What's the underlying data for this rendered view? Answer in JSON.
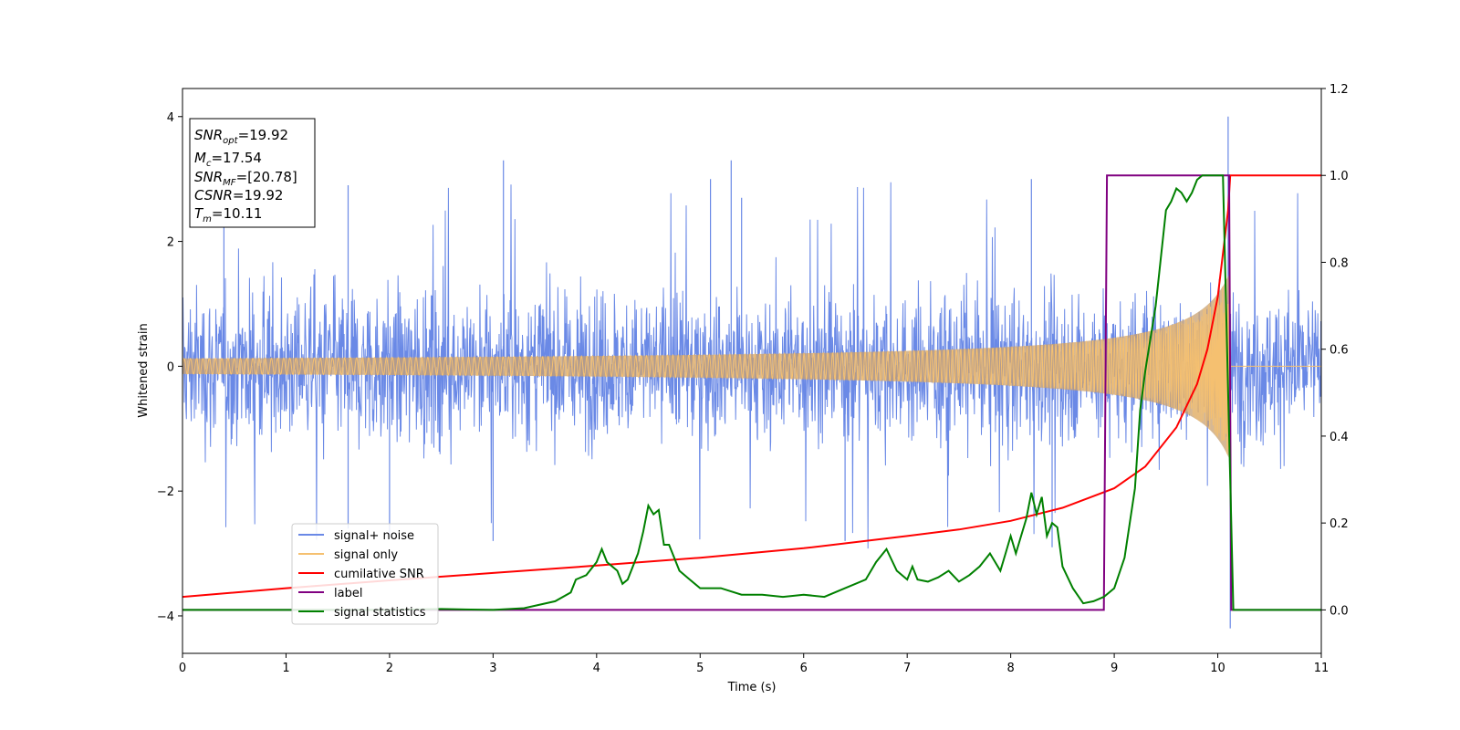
{
  "chart_data": {
    "type": "line",
    "xlabel": "Time (s)",
    "ylabel": "Whitened strain",
    "xlim": [
      0,
      11
    ],
    "ylim_left": [
      -4.6,
      4.45
    ],
    "ylim_right": [
      -0.1,
      1.2
    ],
    "x_ticks": [
      "0",
      "1",
      "2",
      "3",
      "4",
      "5",
      "6",
      "7",
      "8",
      "9",
      "10",
      "11"
    ],
    "y_left_ticks": [
      {
        "v": 4,
        "t": "4"
      },
      {
        "v": 2,
        "t": "2"
      },
      {
        "v": 0,
        "t": "0"
      },
      {
        "v": -2,
        "t": "−2"
      },
      {
        "v": -4,
        "t": "−4"
      }
    ],
    "y_right_ticks": [
      "1.2",
      "1.0",
      "0.8",
      "0.6",
      "0.4",
      "0.2",
      "0.0"
    ],
    "grid": false,
    "legend_position": "lower-left",
    "legend": [
      "signal+ noise",
      "signal only",
      "cumilative SNR",
      "label",
      "signal statistics"
    ],
    "colors": {
      "noise": "#6a89e6",
      "signal": "#f5c070",
      "signal_fill": "#c8a070",
      "cumsnr": "#ff0000",
      "label": "#800080",
      "stat": "#008000"
    },
    "annotation": [
      {
        "base": "SNR",
        "sub": "opt",
        "value": "=19.92"
      },
      {
        "base": "M",
        "sub": "c",
        "value": "=17.54"
      },
      {
        "base": "SNR",
        "sub": "MF",
        "value": "=[20.78]"
      },
      {
        "base": "CSNR",
        "sub": "",
        "value": "=19.92"
      },
      {
        "base": "T",
        "sub": "m",
        "value": "=10.11"
      }
    ],
    "series": [
      {
        "name": "signal+ noise",
        "axis": "left",
        "description_type": "noise",
        "envelope_typical": 1.5,
        "envelope_peak": 3.3,
        "peaks": [
          [
            0.4,
            2.8
          ],
          [
            1.6,
            2.9
          ],
          [
            3.1,
            3.3
          ],
          [
            5.1,
            3.0
          ],
          [
            5.3,
            3.3
          ],
          [
            5.4,
            2.7
          ],
          [
            8.2,
            3.0
          ],
          [
            10.1,
            4.0
          ],
          [
            10.12,
            -4.2
          ],
          [
            1.6,
            -2.6
          ],
          [
            2.0,
            -2.7
          ],
          [
            3.0,
            -2.8
          ],
          [
            6.4,
            -2.8
          ],
          [
            8.4,
            -2.9
          ]
        ]
      },
      {
        "name": "signal only",
        "axis": "left",
        "description_type": "chirp",
        "merger_time": 10.11,
        "amplitude_at_merger": 1.8
      },
      {
        "name": "cumilative SNR",
        "axis": "right",
        "x": [
          0,
          1,
          2,
          3,
          4,
          5,
          6,
          7,
          7.5,
          8,
          8.5,
          9,
          9.3,
          9.6,
          9.8,
          9.9,
          10.0,
          10.05,
          10.1,
          10.12,
          11
        ],
        "y": [
          0.03,
          0.05,
          0.068,
          0.085,
          0.102,
          0.12,
          0.142,
          0.17,
          0.185,
          0.205,
          0.235,
          0.28,
          0.33,
          0.42,
          0.52,
          0.6,
          0.72,
          0.82,
          0.92,
          1.0,
          1.0
        ]
      },
      {
        "name": "label",
        "axis": "right",
        "x": [
          0,
          8.9,
          8.93,
          10.11,
          10.13,
          11
        ],
        "y": [
          0.0,
          0.0,
          1.0,
          1.0,
          0.0,
          0.0
        ]
      },
      {
        "name": "signal statistics",
        "axis": "right",
        "x": [
          0,
          1,
          2,
          2.5,
          3,
          3.3,
          3.6,
          3.75,
          3.8,
          3.9,
          4.0,
          4.05,
          4.1,
          4.2,
          4.25,
          4.3,
          4.4,
          4.45,
          4.5,
          4.55,
          4.6,
          4.65,
          4.7,
          4.8,
          4.9,
          5.0,
          5.2,
          5.4,
          5.6,
          5.8,
          6.0,
          6.2,
          6.4,
          6.6,
          6.7,
          6.8,
          6.9,
          7.0,
          7.05,
          7.1,
          7.2,
          7.3,
          7.4,
          7.5,
          7.6,
          7.7,
          7.8,
          7.9,
          7.95,
          8.0,
          8.05,
          8.1,
          8.15,
          8.2,
          8.25,
          8.3,
          8.35,
          8.4,
          8.45,
          8.5,
          8.6,
          8.7,
          8.8,
          8.9,
          9.0,
          9.1,
          9.2,
          9.25,
          9.3,
          9.4,
          9.5,
          9.55,
          9.6,
          9.65,
          9.7,
          9.75,
          9.8,
          9.85,
          9.9,
          10.0,
          10.05,
          10.1,
          10.15,
          10.2,
          11
        ],
        "y": [
          0.0,
          0.0,
          0.0,
          0.002,
          0.0,
          0.004,
          0.02,
          0.04,
          0.07,
          0.08,
          0.11,
          0.14,
          0.11,
          0.09,
          0.06,
          0.07,
          0.13,
          0.18,
          0.24,
          0.22,
          0.23,
          0.15,
          0.15,
          0.09,
          0.07,
          0.05,
          0.05,
          0.035,
          0.035,
          0.03,
          0.035,
          0.03,
          0.05,
          0.07,
          0.11,
          0.14,
          0.09,
          0.07,
          0.1,
          0.07,
          0.065,
          0.075,
          0.09,
          0.065,
          0.08,
          0.1,
          0.13,
          0.09,
          0.13,
          0.17,
          0.13,
          0.17,
          0.21,
          0.27,
          0.22,
          0.26,
          0.17,
          0.2,
          0.19,
          0.1,
          0.05,
          0.015,
          0.02,
          0.03,
          0.05,
          0.12,
          0.28,
          0.46,
          0.55,
          0.7,
          0.92,
          0.94,
          0.97,
          0.96,
          0.94,
          0.96,
          0.99,
          1.0,
          1.0,
          1.0,
          1.0,
          0.5,
          0.0,
          0.0,
          0.0
        ]
      }
    ]
  }
}
